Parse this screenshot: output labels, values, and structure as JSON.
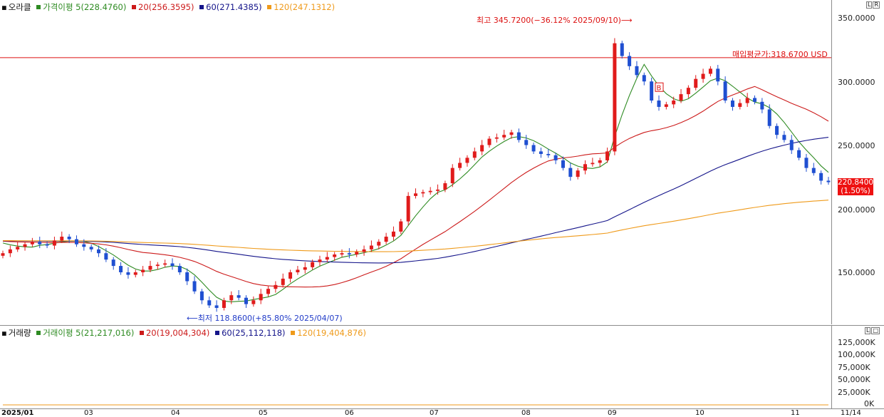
{
  "price_legend": {
    "name": "오라클",
    "ma5": "가격이평 5(228.4760)",
    "ma20": "20(256.3595)",
    "ma60": "60(271.4385)",
    "ma120": "120(247.1312)"
  },
  "volume_legend": {
    "name": "거래량",
    "ma5": "거래이평 5(21,217,016)",
    "ma20": "20(19,004,304)",
    "ma60": "60(25,112,118)",
    "ma120": "120(19,404,876)"
  },
  "price_axis": [
    "350.0000",
    "300.0000",
    "250.0000",
    "200.0000",
    "150.0000"
  ],
  "volume_axis": [
    "125,000K",
    "100,000K",
    "75,000K",
    "50,000K",
    "25,000K",
    "0K"
  ],
  "x_axis": [
    "2025/01",
    "03",
    "04",
    "05",
    "06",
    "07",
    "08",
    "09",
    "10",
    "11",
    "11/14"
  ],
  "high_annotation": "최고 345.7200(−36.12% 2025/09/10)",
  "low_annotation": "최저 118.8600(+85.80% 2025/04/07)",
  "avg_cost_label": "매입평균가:318.6700 USD",
  "buy_marker": "B",
  "last_price": "220.8400",
  "last_change": "(1.50%)",
  "pane_buttons": [
    "L",
    "R"
  ],
  "vol_pane_buttons": [
    "L",
    "□"
  ],
  "colors": {
    "up": "#e01b1b",
    "down": "#1f4fd1",
    "ma5": "#2e8b22",
    "ma20": "#cc1a1a",
    "ma60": "#14148a",
    "ma120": "#ef9a1a",
    "avg_line": "#d11"
  },
  "chart_data": {
    "type": "candlestick",
    "y_range": [
      110,
      355
    ],
    "volume_range_k": [
      0,
      135000
    ],
    "avg_cost": 318.67,
    "high": {
      "value": 345.72,
      "date": "2025/09/10"
    },
    "low": {
      "value": 118.86,
      "date": "2025/04/07"
    },
    "series": [
      {
        "name": "가격이평 5",
        "last": 228.476
      },
      {
        "name": "20",
        "last": 256.3595
      },
      {
        "name": "60",
        "last": 271.4385
      },
      {
        "name": "120",
        "last": 247.1312
      }
    ],
    "close_path": [
      165,
      168,
      170,
      172,
      174,
      172,
      171,
      175,
      178,
      176,
      172,
      170,
      168,
      165,
      160,
      155,
      150,
      148,
      150,
      152,
      155,
      156,
      157,
      155,
      150,
      143,
      135,
      128,
      124,
      122,
      128,
      132,
      130,
      125,
      128,
      133,
      137,
      140,
      145,
      150,
      152,
      154,
      158,
      160,
      162,
      164,
      165,
      164,
      166,
      168,
      171,
      174,
      178,
      182,
      190,
      210,
      212,
      213,
      214,
      215,
      220,
      232,
      236,
      240,
      245,
      250,
      255,
      256,
      258,
      260,
      254,
      250,
      245,
      243,
      242,
      238,
      232,
      225,
      230,
      235,
      236,
      238,
      245,
      330,
      320,
      312,
      305,
      300,
      285,
      280,
      282,
      285,
      290,
      295,
      302,
      306,
      310,
      300,
      285,
      280,
      283,
      287,
      284,
      278,
      265,
      258,
      254,
      246,
      240,
      232,
      228,
      222,
      220.84
    ],
    "volume_k": [
      8,
      9,
      8,
      10,
      9,
      8,
      9,
      10,
      8,
      9,
      10,
      11,
      9,
      12,
      10,
      9,
      8,
      10,
      9,
      11,
      12,
      14,
      10,
      9,
      8,
      12,
      10,
      9,
      9,
      8,
      10,
      11,
      12,
      9,
      10,
      11,
      12,
      13,
      10,
      11,
      12,
      9,
      10,
      11,
      12,
      10,
      9,
      10,
      11,
      12,
      13,
      14,
      15,
      12,
      22,
      50,
      48,
      35,
      22,
      20,
      18,
      16,
      15,
      14,
      13,
      12,
      13,
      11,
      10,
      11,
      12,
      10,
      11,
      12,
      10,
      12,
      11,
      10,
      12,
      14,
      12,
      13,
      15,
      128,
      60,
      48,
      40,
      35,
      28,
      30,
      26,
      25,
      22,
      21,
      20,
      19,
      18,
      24,
      30,
      28,
      25,
      22,
      20,
      21,
      23,
      25,
      24,
      22,
      20,
      19,
      21,
      22,
      18
    ]
  }
}
